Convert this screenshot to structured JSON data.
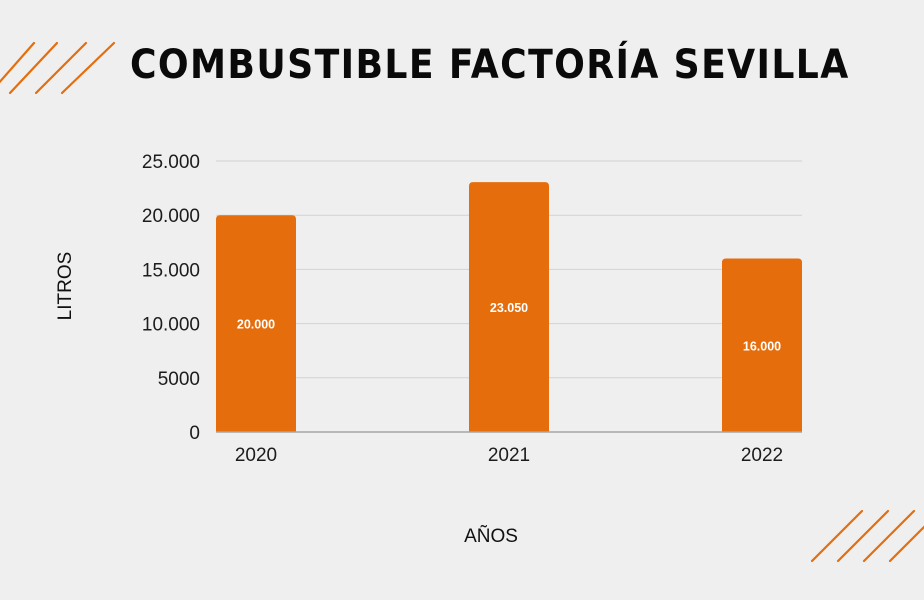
{
  "title": "COMBUSTIBLE FACTORÍA SEVILLA",
  "colors": {
    "background": "#efefef",
    "bar": "#e56d0c",
    "accent_stripes": "#e56d0c",
    "gridline": "#d2d2d2",
    "baseline": "#a6a6a6",
    "text": "#111111",
    "bar_label": "#ffffff"
  },
  "decorations": {
    "top_left": "orange-diagonal-stripes",
    "bottom_right": "orange-diagonal-stripes"
  },
  "chart_data": {
    "type": "bar",
    "title": "COMBUSTIBLE FACTORÍA SEVILLA",
    "categories": [
      "2020",
      "2021",
      "2022"
    ],
    "values": [
      20000,
      23050,
      16000
    ],
    "value_labels": [
      "20.000",
      "23.050",
      "16.000"
    ],
    "xlabel": "AÑOS",
    "ylabel": "LITROS",
    "ylim": [
      0,
      25000
    ],
    "yticks": [
      0,
      5000,
      10000,
      15000,
      20000,
      25000
    ],
    "ytick_labels": [
      "0",
      "5000",
      "10.000",
      "15.000",
      "20.000",
      "25.000"
    ],
    "grid": true,
    "legend": "none"
  }
}
